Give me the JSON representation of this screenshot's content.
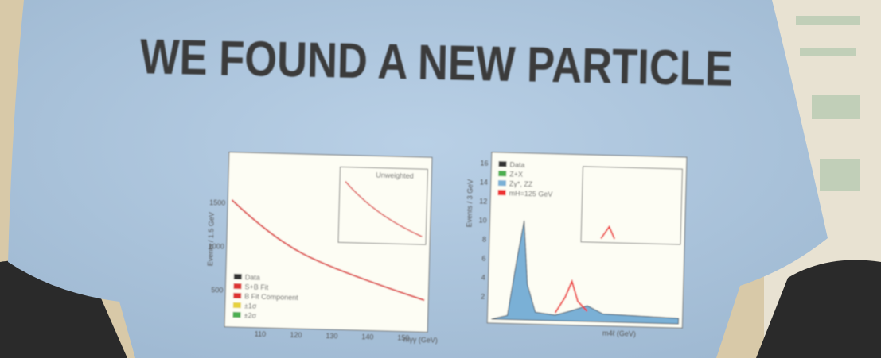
{
  "title": "WE FOUND A NEW PARTICLE",
  "left_plot": {
    "y_label": "Events / 1.5 GeV",
    "x_label": "mγγ (GeV)",
    "inset_label": "Unweighted",
    "y_ticks": [
      "1500",
      "1000",
      "500"
    ],
    "x_ticks": [
      "110",
      "120",
      "130",
      "140",
      "150"
    ],
    "legend": [
      "Data",
      "S+B Fit",
      "B Fit Component",
      "±1σ",
      "±2σ"
    ]
  },
  "right_plot": {
    "y_label": "Events / 3 GeV",
    "x_label": "m4ℓ (GeV)",
    "y_ticks": [
      "16",
      "14",
      "12",
      "10",
      "8",
      "6",
      "4",
      "2"
    ],
    "legend": [
      "Data",
      "Z+X",
      "Zγ*, ZZ",
      "mH=125 GeV"
    ]
  }
}
